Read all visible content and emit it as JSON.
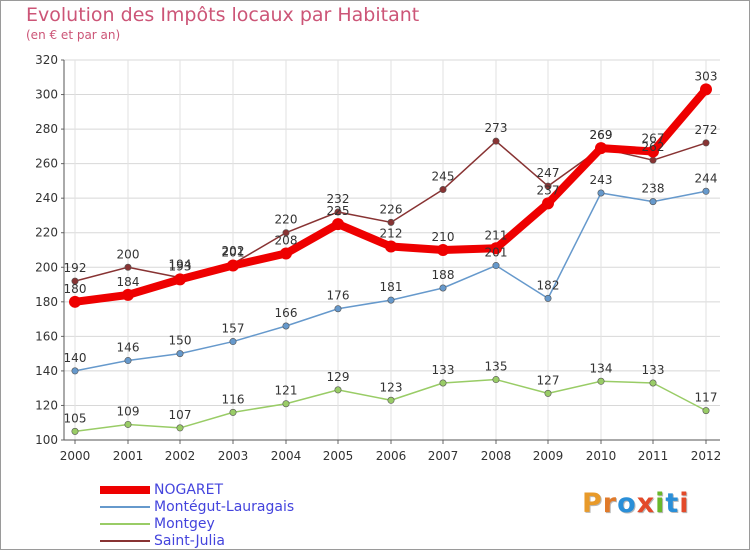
{
  "title": "Evolution des Impôts locaux par Habitant",
  "subtitle": "(en € et par an)",
  "brand": {
    "text": "Proxiti",
    "letter_colors": [
      "#e89a2a",
      "#e07a2a",
      "#2a8fd8",
      "#e34a2a",
      "#6ab82a",
      "#2a8fd8",
      "#e34a2a"
    ]
  },
  "chart_data": {
    "type": "line",
    "title": "Evolution des Impôts locaux par Habitant",
    "subtitle": "(en € et par an)",
    "xlabel": "",
    "ylabel": "",
    "x": [
      "2000",
      "2001",
      "2002",
      "2003",
      "2004",
      "2005",
      "2006",
      "2007",
      "2008",
      "2009",
      "2010",
      "2011",
      "2012"
    ],
    "ylim": [
      100,
      320
    ],
    "yticks": [
      "100",
      "120",
      "140",
      "160",
      "180",
      "200",
      "220",
      "240",
      "260",
      "280",
      "300",
      "320"
    ],
    "grid": true,
    "legend_position": "bottom-left",
    "series": [
      {
        "name": "NOGARET",
        "color": "#ee0000",
        "values": [
          180,
          184,
          193,
          201,
          208,
          225,
          212,
          210,
          211,
          237,
          269,
          267,
          303
        ]
      },
      {
        "name": "Montégut-Lauragais",
        "color": "#6699cc",
        "values": [
          140,
          146,
          150,
          157,
          166,
          176,
          181,
          188,
          201,
          182,
          243,
          238,
          244
        ]
      },
      {
        "name": "Montgey",
        "color": "#99cc66",
        "values": [
          105,
          109,
          107,
          116,
          121,
          129,
          123,
          133,
          135,
          127,
          134,
          133,
          117
        ]
      },
      {
        "name": "Saint-Julia",
        "color": "#883333",
        "values": [
          192,
          200,
          194,
          202,
          220,
          232,
          226,
          245,
          273,
          247,
          269,
          262,
          272
        ]
      }
    ]
  }
}
